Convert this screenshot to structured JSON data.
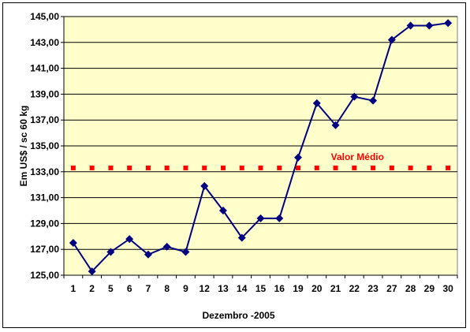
{
  "chart_data": {
    "type": "line",
    "title": "",
    "xlabel": "Dezembro -2005",
    "ylabel": "Em US$ / sc 60 kg",
    "ylim": [
      125,
      145
    ],
    "yticks": [
      125,
      127,
      129,
      131,
      133,
      135,
      137,
      139,
      141,
      143,
      145
    ],
    "ytick_labels": [
      "125,00",
      "127,00",
      "129,00",
      "131,00",
      "133,00",
      "135,00",
      "137,00",
      "139,00",
      "141,00",
      "143,00",
      "145,00"
    ],
    "grid": true,
    "categories": [
      "1",
      "2",
      "5",
      "6",
      "7",
      "8",
      "9",
      "12",
      "13",
      "14",
      "15",
      "16",
      "19",
      "20",
      "21",
      "22",
      "23",
      "27",
      "28",
      "29",
      "30"
    ],
    "series": [
      {
        "name": "",
        "color": "#000080",
        "marker": "diamond",
        "values": [
          127.5,
          125.3,
          126.8,
          127.8,
          126.6,
          127.2,
          126.8,
          131.9,
          130.0,
          127.9,
          129.4,
          129.4,
          134.1,
          138.3,
          136.6,
          138.8,
          138.5,
          143.2,
          144.3,
          144.3,
          144.5
        ]
      },
      {
        "name": "Valor Médio",
        "color": "#ff0000",
        "marker": "square",
        "values": [
          133.3,
          133.3,
          133.3,
          133.3,
          133.3,
          133.3,
          133.3,
          133.3,
          133.3,
          133.3,
          133.3,
          133.3,
          133.3,
          133.3,
          133.3,
          133.3,
          133.3,
          133.3,
          133.3,
          133.3,
          133.3
        ]
      }
    ],
    "annotations": [
      {
        "text": "Valor Médio",
        "color": "#ff0000",
        "near_category": "22",
        "y": 133.3
      }
    ],
    "colors": {
      "plot_background": "#ffffcc",
      "grid": "#000000"
    }
  }
}
